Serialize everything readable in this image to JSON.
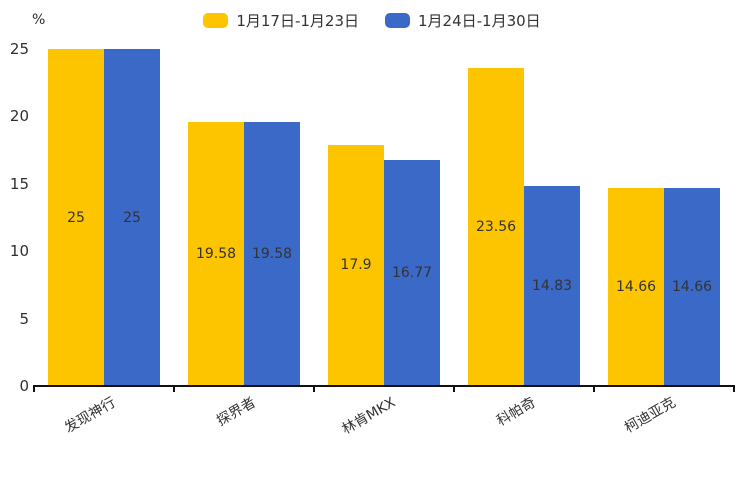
{
  "chart_data": {
    "type": "bar",
    "title": "",
    "ylabel": "%",
    "xlabel": "",
    "ylim": [
      0,
      25
    ],
    "yticks": [
      0,
      5,
      10,
      15,
      20,
      25
    ],
    "grid": false,
    "legend_position": "top-center",
    "value_label_position": "inside-center",
    "xlabel_rotation_deg": -30,
    "categories": [
      "发现神行",
      "探界者",
      "林肯MKX",
      "科帕奇",
      "柯迪亚克"
    ],
    "series": [
      {
        "name": "1月17日-1月23日",
        "color": "#FDC500",
        "values": [
          25,
          19.58,
          17.9,
          23.56,
          14.66
        ]
      },
      {
        "name": "1月24日-1月30日",
        "color": "#3A69C8",
        "values": [
          25,
          19.58,
          16.77,
          14.83,
          14.66
        ]
      }
    ]
  },
  "colors": {
    "background": "#FFFFFF",
    "axis": "#111111",
    "text": "#2E2E2E"
  }
}
